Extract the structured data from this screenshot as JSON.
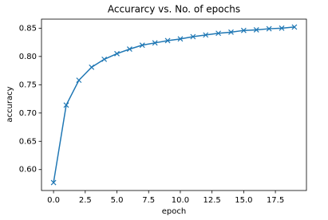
{
  "chart_data": {
    "type": "line",
    "title": "Accurarcy vs. No. of epochs",
    "x_label": "epoch",
    "y_label": "accuracy",
    "x": [
      0,
      1,
      2,
      3,
      4,
      5,
      6,
      7,
      8,
      9,
      10,
      11,
      12,
      13,
      14,
      15,
      16,
      17,
      18,
      19
    ],
    "series": [
      {
        "name": "accuracy",
        "color": "#1f77b4",
        "values": [
          0.577,
          0.714,
          0.758,
          0.781,
          0.795,
          0.805,
          0.813,
          0.82,
          0.824,
          0.828,
          0.831,
          0.835,
          0.838,
          0.841,
          0.843,
          0.846,
          0.847,
          0.849,
          0.85,
          0.852
        ]
      }
    ],
    "xlim": [
      -0.95,
      19.95
    ],
    "xticks": [
      {
        "value": 0,
        "label": "0.0"
      },
      2.5,
      {
        "value": 5,
        "label": "5.0"
      },
      7.5,
      {
        "value": 10,
        "label": "10.0"
      },
      12.5,
      {
        "value": 15,
        "label": "15.0"
      },
      17.5
    ],
    "ylim": [
      0.563,
      0.866
    ],
    "yticks": [
      {
        "value": 0.6,
        "label": "0.60"
      },
      0.65,
      {
        "value": 0.7,
        "label": "0.70"
      },
      0.75,
      {
        "value": 0.8,
        "label": "0.80"
      },
      0.85
    ],
    "grid": false
  }
}
